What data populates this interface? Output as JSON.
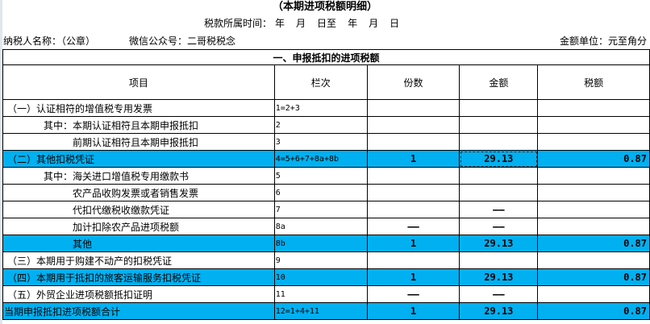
{
  "title": "（本期进项税额明细）",
  "period": {
    "label": "税款所属时间：",
    "parts": [
      "年",
      "月",
      "日至",
      "年",
      "月",
      "日"
    ]
  },
  "taxpayer": "纳税人名称：（公章）",
  "wechat": "微信公众号：二哥税税念",
  "unit": "金额单位：元至角分",
  "section": "一、申报抵扣的进项税额",
  "headers": [
    "项目",
    "栏次",
    "份数",
    "金额",
    "税额"
  ],
  "colors": {
    "highlight": "#00b0f0"
  },
  "rows": [
    {
      "item": "（一）认证相符的增值税专用发票",
      "line": "1=2+3",
      "count": "",
      "amount": "",
      "tax": "",
      "indent": 0,
      "hl": false
    },
    {
      "item": "其中：本期认证相符且本期申报抵扣",
      "line": "2",
      "count": "",
      "amount": "",
      "tax": "",
      "indent": 1,
      "hl": false
    },
    {
      "item": "前期认证相符且本期申报抵扣",
      "line": "3",
      "count": "",
      "amount": "",
      "tax": "",
      "indent": 2,
      "hl": false
    },
    {
      "item": "（二）其他扣税凭证",
      "line": "4=5+6+7+8a+8b",
      "count": "1",
      "amount": "29.13",
      "tax": "0.87",
      "indent": 0,
      "hl": true,
      "sel": true
    },
    {
      "item": "其中：海关进口增值税专用缴款书",
      "line": "5",
      "count": "",
      "amount": "",
      "tax": "",
      "indent": 1,
      "hl": false
    },
    {
      "item": "农产品收购发票或者销售发票",
      "line": "6",
      "count": "",
      "amount": "",
      "tax": "",
      "indent": 2,
      "hl": false
    },
    {
      "item": "代扣代缴税收缴款凭证",
      "line": "7",
      "count": "",
      "amount": "——",
      "tax": "",
      "indent": 2,
      "hl": false
    },
    {
      "item": "加计扣除农产品进项税额",
      "line": "8a",
      "count": "——",
      "amount": "——",
      "tax": "",
      "indent": 2,
      "hl": false
    },
    {
      "item": "其他",
      "line": "8b",
      "count": "1",
      "amount": "29.13",
      "tax": "0.87",
      "indent": 2,
      "hl": true
    },
    {
      "item": "（三）本期用于购建不动产的扣税凭证",
      "line": "9",
      "count": "",
      "amount": "",
      "tax": "",
      "indent": 0,
      "hl": false
    },
    {
      "item": "（四）本期用于抵扣的旅客运输服务扣税凭证",
      "line": "10",
      "count": "1",
      "amount": "29.13",
      "tax": "0.87",
      "indent": 0,
      "hl": true
    },
    {
      "item": "（五）外贸企业进项税额抵扣证明",
      "line": "11",
      "count": "——",
      "amount": "——",
      "tax": "",
      "indent": 0,
      "hl": false
    },
    {
      "item": "当期申报抵扣进项税额合计",
      "line": "12=1+4+11",
      "count": "1",
      "amount": "29.13",
      "tax": "0.87",
      "indent": -1,
      "hl": true
    }
  ]
}
